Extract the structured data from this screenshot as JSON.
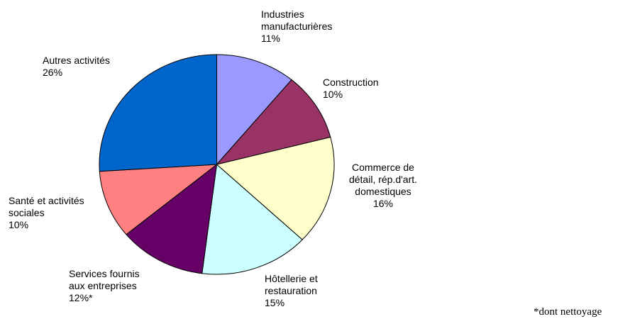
{
  "chart_data": {
    "type": "pie",
    "categories": [
      "Industries manufacturières",
      "Construction",
      "Commerce de détail, rép.d'art. domestiques",
      "Hôtellerie et restauration",
      "Services fournis aux entreprises",
      "Santé et activités sociales",
      "Autres activités"
    ],
    "values": [
      11,
      10,
      16,
      15,
      12,
      10,
      26
    ],
    "value_labels": [
      "11%",
      "10%",
      "16%",
      "15%",
      "12%*",
      "10%",
      "26%"
    ],
    "colors": [
      "#9999ff",
      "#993366",
      "#ffffcc",
      "#ccffff",
      "#660066",
      "#ff8080",
      "#0066cc"
    ],
    "annotation": "*dont nettoyage"
  }
}
